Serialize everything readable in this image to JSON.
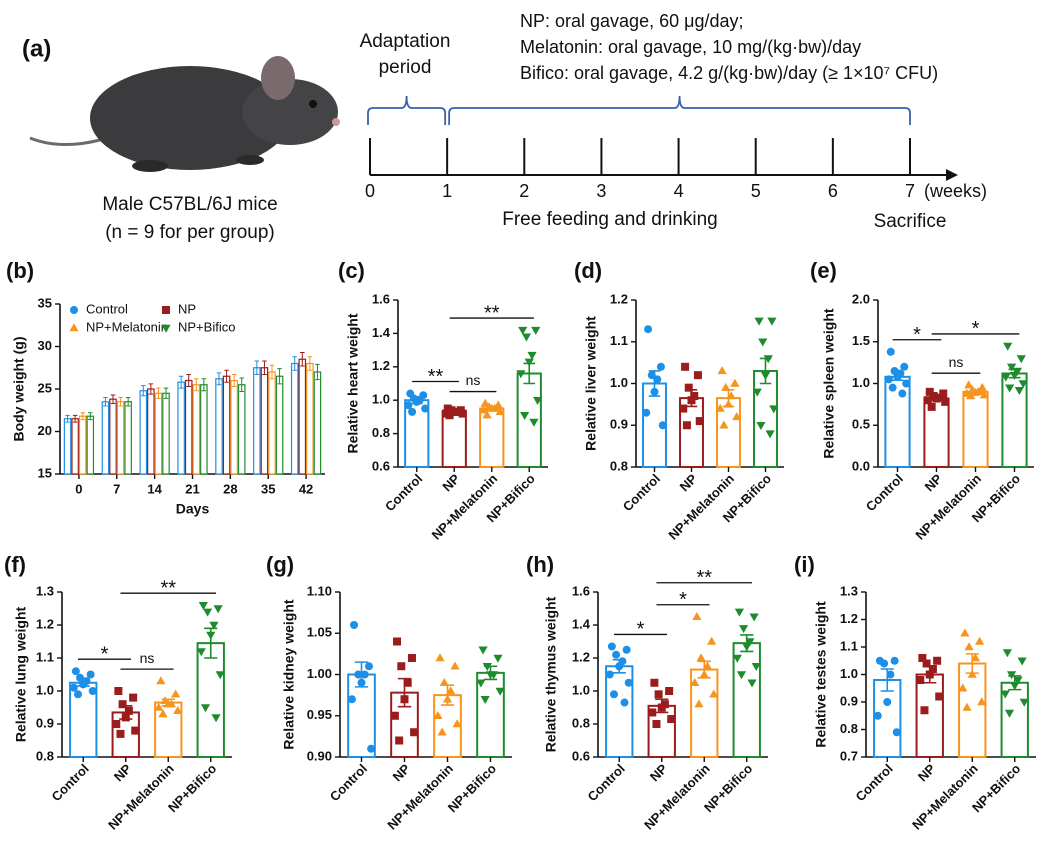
{
  "diagram": {
    "label": "(a)",
    "adaptation": [
      "Adaptation",
      "period"
    ],
    "treatments": [
      "NP: oral gavage, 60 μg/day;",
      "Melatonin: oral gavage, 10 mg/(kg·bw)/day",
      "Bifico: oral gavage, 4.2 g/(kg·bw)/day (≥ 1×10⁷ CFU)"
    ],
    "ticks": [
      0,
      1,
      2,
      3,
      4,
      5,
      6,
      7
    ],
    "unit": "(weeks)",
    "note": "Free feeding and drinking",
    "end": "Sacrifice",
    "end_color": "#e0201b",
    "brace_color": "#3a5fb0",
    "caption": [
      "Male C57BL/6J mice",
      "(n = 9 for per group)"
    ]
  },
  "chart_data": [
    {
      "panel": "(b)",
      "type": "grouped-bar",
      "ylabel": "Body weight (g)",
      "xlabel": "Days",
      "categories": [
        "0",
        "7",
        "14",
        "21",
        "28",
        "35",
        "42"
      ],
      "ylim": [
        15,
        35
      ],
      "yticks": [
        15,
        20,
        25,
        30,
        35
      ],
      "series": [
        {
          "name": "Control",
          "color": "#1e8fe6",
          "marker": "circle",
          "values": [
            21.5,
            23.5,
            24.8,
            25.8,
            26.2,
            27.5,
            28
          ],
          "errors": [
            0.4,
            0.5,
            0.6,
            0.7,
            0.7,
            0.8,
            0.8
          ]
        },
        {
          "name": "NP",
          "color": "#9b1c1c",
          "marker": "square",
          "values": [
            21.5,
            23.8,
            25,
            26,
            26.5,
            27.5,
            28.5
          ],
          "errors": [
            0.4,
            0.5,
            0.6,
            0.7,
            0.7,
            0.8,
            0.8
          ]
        },
        {
          "name": "NP+Melatonin",
          "color": "#f7941d",
          "marker": "triangle-up",
          "values": [
            21.8,
            23.5,
            24.5,
            25.5,
            26,
            27,
            28
          ],
          "errors": [
            0.4,
            0.5,
            0.6,
            0.7,
            0.7,
            0.8,
            0.8
          ]
        },
        {
          "name": "NP+Bifico",
          "color": "#1e8c2e",
          "marker": "triangle-down",
          "values": [
            21.8,
            23.5,
            24.5,
            25.5,
            25.5,
            26.5,
            27
          ],
          "errors": [
            0.4,
            0.5,
            0.6,
            0.7,
            0.8,
            0.9,
            0.9
          ]
        }
      ]
    },
    {
      "panel": "(c)",
      "type": "bar",
      "ylabel": "Relative heart weight",
      "categories": [
        "Control",
        "NP",
        "NP+Melatonin",
        "NP+Bifico"
      ],
      "colors": [
        "#1e8fe6",
        "#9b1c1c",
        "#f7941d",
        "#1e8c2e"
      ],
      "markers": [
        "circle",
        "square",
        "triangle-up",
        "triangle-down"
      ],
      "ylim": [
        0.6,
        1.6
      ],
      "yticks": [
        0.6,
        0.8,
        {
          "value": 1,
          "label": "1.0"
        },
        1.2,
        1.4,
        1.6
      ],
      "values": [
        1.0,
        0.93,
        0.95,
        1.16
      ],
      "errors": [
        0.02,
        0.01,
        0.01,
        0.06
      ],
      "points": [
        [
          1.04,
          1.03,
          1.01,
          1.0,
          0.99,
          0.97,
          0.95,
          0.93
        ],
        [
          0.95,
          0.94,
          0.94,
          0.93,
          0.93,
          0.92,
          0.92,
          0.91
        ],
        [
          0.98,
          0.97,
          0.96,
          0.95,
          0.95,
          0.94,
          0.93,
          0.91
        ],
        [
          1.42,
          1.42,
          1.38,
          1.27,
          1.23,
          1.16,
          1.0,
          0.91,
          0.87
        ]
      ],
      "annotations": [
        {
          "from": "Control",
          "to": "NP",
          "label": "**"
        },
        {
          "from": "NP",
          "to": "NP+Melatonin",
          "label": "ns"
        },
        {
          "from": "NP",
          "to": "NP+Bifico",
          "label": "**"
        }
      ]
    },
    {
      "panel": "(d)",
      "type": "bar",
      "ylabel": "Relative liver weight",
      "categories": [
        "Control",
        "NP",
        "NP+Melatonin",
        "NP+Bifico"
      ],
      "colors": [
        "#1e8fe6",
        "#9b1c1c",
        "#f7941d",
        "#1e8c2e"
      ],
      "markers": [
        "circle",
        "square",
        "triangle-up",
        "triangle-down"
      ],
      "ylim": [
        0.8,
        1.2
      ],
      "yticks": [
        0.8,
        0.9,
        {
          "value": 1,
          "label": "1.0"
        },
        1.1,
        1.2
      ],
      "values": [
        1.0,
        0.965,
        0.965,
        1.03
      ],
      "errors": [
        0.03,
        0.02,
        0.02,
        0.03
      ],
      "points": [
        [
          1.13,
          1.04,
          1.02,
          1.01,
          0.98,
          0.93,
          0.9
        ],
        [
          1.04,
          1.02,
          0.99,
          0.97,
          0.96,
          0.94,
          0.91,
          0.9
        ],
        [
          1.03,
          1.0,
          0.99,
          0.97,
          0.95,
          0.94,
          0.92,
          0.9
        ],
        [
          1.15,
          1.15,
          1.1,
          1.06,
          1.02,
          0.98,
          0.94,
          0.9,
          0.88
        ]
      ],
      "annotations": []
    },
    {
      "panel": "(e)",
      "type": "bar",
      "ylabel": "Relative spleen weight",
      "categories": [
        "Control",
        "NP",
        "NP+Melatonin",
        "NP+Bifico"
      ],
      "colors": [
        "#1e8fe6",
        "#9b1c1c",
        "#f7941d",
        "#1e8c2e"
      ],
      "markers": [
        "circle",
        "square",
        "triangle-up",
        "triangle-down"
      ],
      "ylim": [
        0,
        2
      ],
      "yticks": [
        {
          "value": 0,
          "label": "0.0"
        },
        0.5,
        {
          "value": 1,
          "label": "1.0"
        },
        1.5,
        {
          "value": 2,
          "label": "2.0"
        }
      ],
      "values": [
        1.08,
        0.82,
        0.9,
        1.12
      ],
      "errors": [
        0.04,
        0.02,
        0.02,
        0.05
      ],
      "points": [
        [
          1.38,
          1.2,
          1.15,
          1.12,
          1.08,
          1.05,
          1.0,
          0.95,
          0.88
        ],
        [
          0.9,
          0.88,
          0.85,
          0.83,
          0.82,
          0.8,
          0.78,
          0.72
        ],
        [
          0.98,
          0.95,
          0.92,
          0.9,
          0.89,
          0.88,
          0.86,
          0.85
        ],
        [
          1.45,
          1.3,
          1.2,
          1.15,
          1.1,
          1.08,
          1.0,
          0.95,
          0.92
        ]
      ],
      "annotations": [
        {
          "from": "Control",
          "to": "NP",
          "label": "*"
        },
        {
          "from": "NP",
          "to": "NP+Melatonin",
          "label": "ns"
        },
        {
          "from": "NP",
          "to": "NP+Bifico",
          "label": "*"
        }
      ]
    },
    {
      "panel": "(f)",
      "type": "bar",
      "ylabel": "Relative lung weight",
      "categories": [
        "Control",
        "NP",
        "NP+Melatonin",
        "NP+Bifico"
      ],
      "colors": [
        "#1e8fe6",
        "#9b1c1c",
        "#f7941d",
        "#1e8c2e"
      ],
      "markers": [
        "circle",
        "square",
        "triangle-up",
        "triangle-down"
      ],
      "ylim": [
        0.8,
        1.3
      ],
      "yticks": [
        0.8,
        0.9,
        {
          "value": 1,
          "label": "1.0"
        },
        1.1,
        1.2,
        1.3
      ],
      "values": [
        1.025,
        0.935,
        0.965,
        1.145
      ],
      "errors": [
        0.01,
        0.02,
        0.01,
        0.045
      ],
      "points": [
        [
          1.06,
          1.05,
          1.04,
          1.03,
          1.02,
          1.01,
          1.0,
          0.99
        ],
        [
          1.0,
          0.98,
          0.96,
          0.94,
          0.92,
          0.9,
          0.88,
          0.87
        ],
        [
          1.03,
          0.99,
          0.97,
          0.96,
          0.96,
          0.95,
          0.94,
          0.93
        ],
        [
          1.26,
          1.25,
          1.24,
          1.2,
          1.17,
          1.12,
          1.05,
          0.95,
          0.92
        ]
      ],
      "annotations": [
        {
          "from": "Control",
          "to": "NP",
          "label": "*"
        },
        {
          "from": "NP",
          "to": "NP+Melatonin",
          "label": "ns"
        },
        {
          "from": "NP",
          "to": "NP+Bifico",
          "label": "**"
        }
      ]
    },
    {
      "panel": "(g)",
      "type": "bar",
      "ylabel": "Relative kidney weight",
      "categories": [
        "Control",
        "NP",
        "NP+Melatonin",
        "NP+Bifico"
      ],
      "colors": [
        "#1e8fe6",
        "#9b1c1c",
        "#f7941d",
        "#1e8c2e"
      ],
      "markers": [
        "circle",
        "square",
        "triangle-up",
        "triangle-down"
      ],
      "ylim": [
        0.9,
        1.1
      ],
      "yticks": [
        {
          "value": 0.9,
          "label": "0.90"
        },
        {
          "value": 0.95,
          "label": "0.95"
        },
        {
          "value": 1,
          "label": "1.00"
        },
        {
          "value": 1.05,
          "label": "1.05"
        },
        {
          "value": 1.1,
          "label": "1.10"
        }
      ],
      "values": [
        1.0,
        0.978,
        0.975,
        1.002
      ],
      "errors": [
        0.015,
        0.017,
        0.012,
        0.008
      ],
      "points": [
        [
          1.06,
          1.01,
          1.0,
          1.0,
          0.99,
          0.97,
          0.91
        ],
        [
          1.04,
          1.02,
          1.01,
          0.99,
          0.97,
          0.95,
          0.93,
          0.92
        ],
        [
          1.02,
          1.01,
          0.99,
          0.98,
          0.97,
          0.95,
          0.94,
          0.93
        ],
        [
          1.03,
          1.02,
          1.01,
          1.0,
          1.0,
          0.99,
          0.98,
          0.97
        ]
      ],
      "annotations": []
    },
    {
      "panel": "(h)",
      "type": "bar",
      "ylabel": "Relative thymus weight",
      "categories": [
        "Control",
        "NP",
        "NP+Melatonin",
        "NP+Bifico"
      ],
      "colors": [
        "#1e8fe6",
        "#9b1c1c",
        "#f7941d",
        "#1e8c2e"
      ],
      "markers": [
        "circle",
        "square",
        "triangle-up",
        "triangle-down"
      ],
      "ylim": [
        0.6,
        1.6
      ],
      "yticks": [
        0.6,
        0.8,
        {
          "value": 1,
          "label": "1.0"
        },
        1.2,
        1.4,
        1.6
      ],
      "values": [
        1.15,
        0.91,
        1.13,
        1.29
      ],
      "errors": [
        0.04,
        0.04,
        0.05,
        0.05
      ],
      "points": [
        [
          1.27,
          1.25,
          1.22,
          1.18,
          1.15,
          1.1,
          1.05,
          0.98,
          0.93
        ],
        [
          1.05,
          1.0,
          0.98,
          0.92,
          0.9,
          0.87,
          0.83,
          0.8
        ],
        [
          1.45,
          1.3,
          1.2,
          1.15,
          1.1,
          1.05,
          0.98,
          0.92
        ],
        [
          1.48,
          1.45,
          1.38,
          1.3,
          1.27,
          1.2,
          1.15,
          1.1,
          1.05
        ]
      ],
      "annotations": [
        {
          "from": "Control",
          "to": "NP",
          "label": "*"
        },
        {
          "from": "NP",
          "to": "NP+Melatonin",
          "label": "*"
        },
        {
          "from": "NP",
          "to": "NP+Bifico",
          "label": "**"
        }
      ]
    },
    {
      "panel": "(i)",
      "type": "bar",
      "ylabel": "Relative testes weight",
      "categories": [
        "Control",
        "NP",
        "NP+Melatonin",
        "NP+Bifico"
      ],
      "colors": [
        "#1e8fe6",
        "#9b1c1c",
        "#f7941d",
        "#1e8c2e"
      ],
      "markers": [
        "circle",
        "square",
        "triangle-up",
        "triangle-down"
      ],
      "ylim": [
        0.7,
        1.3
      ],
      "yticks": [
        0.7,
        0.8,
        0.9,
        {
          "value": 1,
          "label": "1.0"
        },
        1.1,
        1.2,
        1.3
      ],
      "values": [
        0.98,
        1.0,
        1.04,
        0.97
      ],
      "errors": [
        0.04,
        0.03,
        0.035,
        0.025
      ],
      "points": [
        [
          1.05,
          1.05,
          1.04,
          1.0,
          0.9,
          0.85,
          0.79
        ],
        [
          1.06,
          1.05,
          1.04,
          1.02,
          1.0,
          0.98,
          0.92,
          0.87
        ],
        [
          1.15,
          1.12,
          1.1,
          1.06,
          1.0,
          0.95,
          0.9,
          0.88
        ],
        [
          1.08,
          1.05,
          1.0,
          0.98,
          0.96,
          0.93,
          0.9,
          0.86
        ]
      ],
      "annotations": []
    }
  ]
}
